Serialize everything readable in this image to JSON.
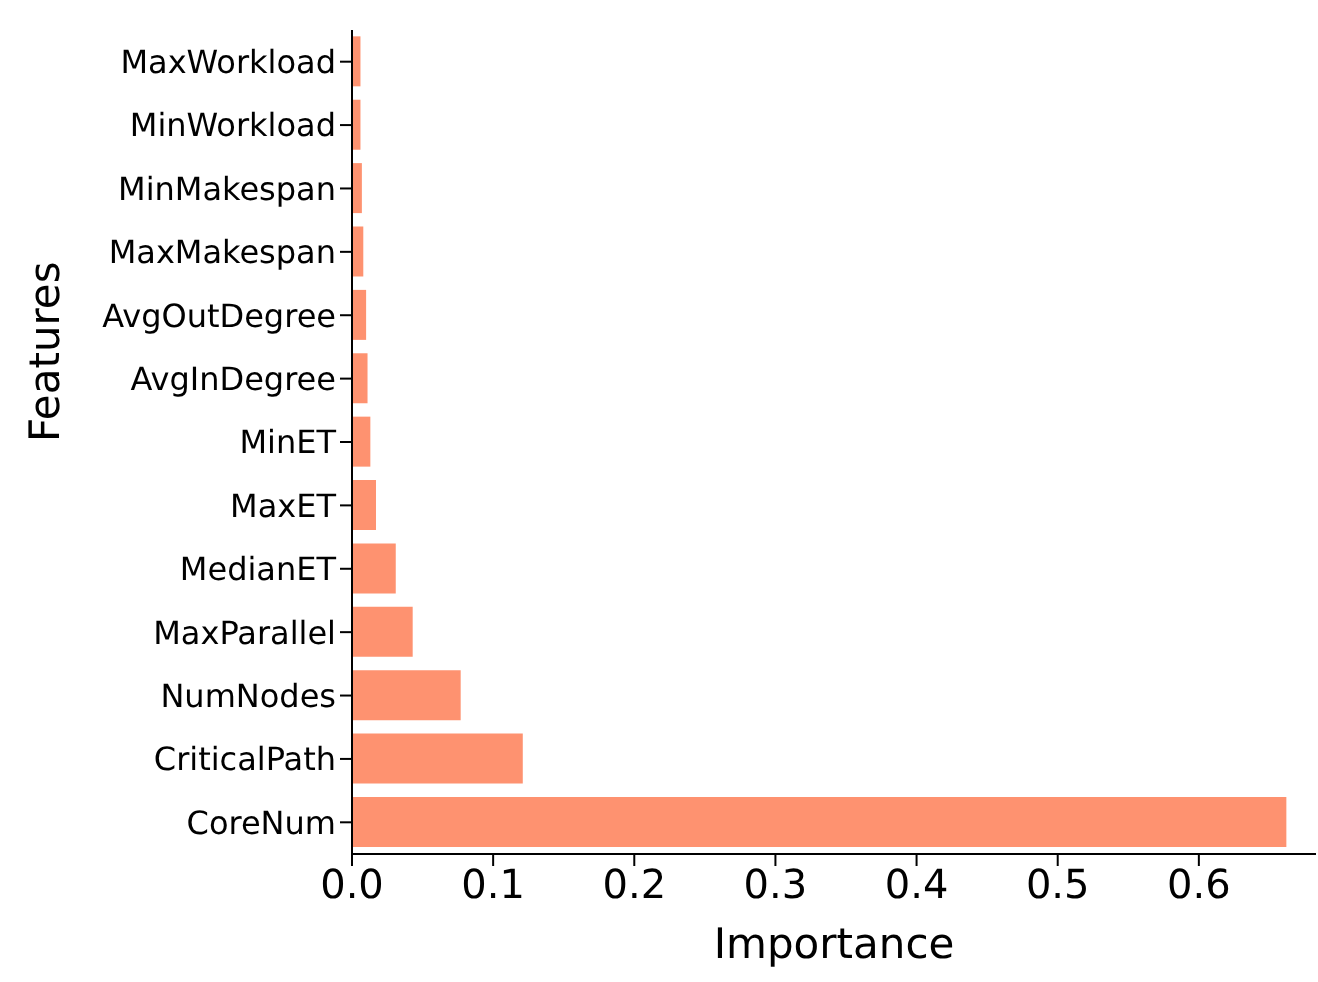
{
  "chart_data": {
    "type": "bar",
    "orientation": "horizontal",
    "xlabel": "Importance",
    "ylabel": "Features",
    "categories": [
      "MaxWorkload",
      "MinWorkload",
      "MinMakespan",
      "MaxMakespan",
      "AvgOutDegree",
      "AvgInDegree",
      "MinET",
      "MaxET",
      "MedianET",
      "MaxParallel",
      "NumNodes",
      "CriticalPath",
      "CoreNum"
    ],
    "values": [
      0.006,
      0.006,
      0.007,
      0.008,
      0.01,
      0.011,
      0.013,
      0.017,
      0.031,
      0.043,
      0.077,
      0.121,
      0.662
    ],
    "color": "#fe9270",
    "xlim": [
      0,
      0.683
    ],
    "xticks": [
      {
        "value": 0,
        "label": "0.0"
      },
      0.1,
      0.2,
      0.3,
      0.4,
      0.5,
      0.6
    ],
    "grid": false,
    "legend": false
  }
}
